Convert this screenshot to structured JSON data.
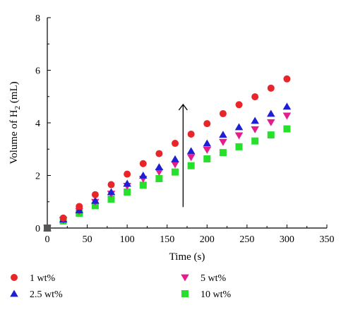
{
  "chart_data": {
    "type": "scatter",
    "xlabel": "Time (s)",
    "ylabel_main": "Volume of H",
    "ylabel_sub": "2",
    "ylabel_unit": " (mL)",
    "xlim": [
      0,
      350
    ],
    "ylim": [
      0,
      8
    ],
    "xticks": [
      0,
      50,
      100,
      150,
      200,
      250,
      300,
      350
    ],
    "yticks": [
      0,
      2,
      4,
      6,
      8
    ],
    "grid": false,
    "legend_position": "bottom",
    "x": [
      0,
      20,
      40,
      60,
      80,
      100,
      120,
      140,
      160,
      180,
      200,
      220,
      240,
      260,
      280,
      300
    ],
    "series": [
      {
        "name": "1 wt%",
        "marker": "circle",
        "color": "#e8262a",
        "values": [
          0,
          0.38,
          0.82,
          1.27,
          1.65,
          2.05,
          2.45,
          2.83,
          3.22,
          3.57,
          3.97,
          4.35,
          4.69,
          4.99,
          5.32,
          5.67
        ]
      },
      {
        "name": "2.5 wt%",
        "marker": "triangle-up",
        "color": "#1c1fd6",
        "values": [
          0,
          0.33,
          0.68,
          1.04,
          1.37,
          1.69,
          2.0,
          2.32,
          2.62,
          2.93,
          3.22,
          3.55,
          3.84,
          4.08,
          4.35,
          4.62
        ]
      },
      {
        "name": "5 wt%",
        "marker": "triangle-down",
        "color": "#e61c8c",
        "values": [
          0,
          0.31,
          0.64,
          0.99,
          1.3,
          1.6,
          1.87,
          2.13,
          2.42,
          2.69,
          2.97,
          3.27,
          3.52,
          3.75,
          4.02,
          4.27
        ]
      },
      {
        "name": "10 wt%",
        "marker": "square",
        "color": "#26e02c",
        "values": [
          0,
          0.27,
          0.56,
          0.85,
          1.1,
          1.37,
          1.63,
          1.88,
          2.13,
          2.37,
          2.63,
          2.87,
          3.09,
          3.31,
          3.54,
          3.77
        ]
      }
    ],
    "annotation": {
      "type": "arrow",
      "x": 170,
      "y_start": 0.8,
      "y_end": 4.7
    }
  }
}
